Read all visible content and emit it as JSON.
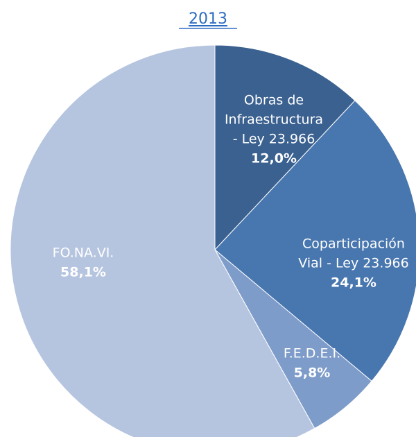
{
  "chart_data": {
    "type": "pie",
    "title": "2013",
    "categories": [
      [
        "Obras de",
        "Infraestructura",
        "- Ley 23.966"
      ],
      [
        "Coparticipación",
        "Vial - Ley 23.966"
      ],
      [
        "F.E.D.E.I."
      ],
      [
        "FO.NA.VI."
      ]
    ],
    "values": [
      12.0,
      24.1,
      5.8,
      58.1
    ],
    "value_labels": [
      "12,0%",
      "24,1%",
      "5,8%",
      "58,1%"
    ],
    "colors": [
      "#3b6190",
      "#4876ae",
      "#7e9cc9",
      "#b6c5df"
    ]
  }
}
